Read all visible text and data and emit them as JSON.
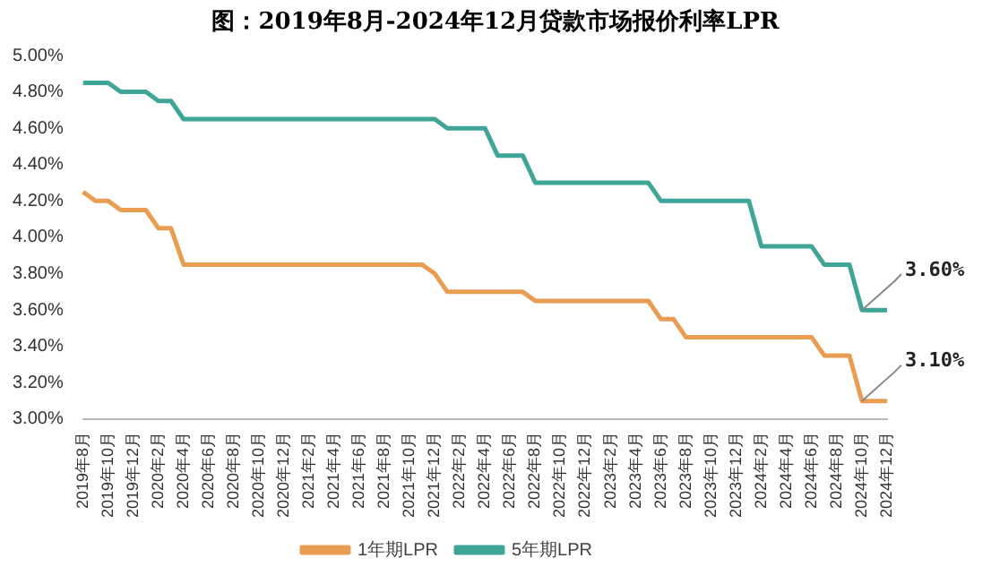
{
  "chart_data": {
    "type": "line",
    "title": "图：2019年8月-2024年12月贷款市场报价利率LPR",
    "categories": [
      "2019年8月",
      null,
      "2019年10月",
      null,
      "2019年12月",
      null,
      "2020年2月",
      null,
      "2020年4月",
      null,
      "2020年6月",
      null,
      "2020年8月",
      null,
      "2020年10月",
      null,
      "2020年12月",
      null,
      "2021年2月",
      null,
      "2021年4月",
      null,
      "2021年6月",
      null,
      "2021年8月",
      null,
      "2021年10月",
      null,
      "2021年12月",
      null,
      "2022年2月",
      null,
      "2022年4月",
      null,
      "2022年6月",
      null,
      "2022年8月",
      null,
      "2022年10月",
      null,
      "2022年12月",
      null,
      "2023年2月",
      null,
      "2023年4月",
      null,
      "2023年6月",
      null,
      "2023年8月",
      null,
      "2023年10月",
      null,
      "2023年12月",
      null,
      "2024年2月",
      null,
      "2024年4月",
      null,
      "2024年6月",
      null,
      "2024年8月",
      null,
      "2024年10月",
      null,
      "2024年12月"
    ],
    "series": [
      {
        "name": "1年期LPR",
        "color": "#e99d52",
        "values": [
          4.25,
          4.2,
          4.2,
          4.15,
          4.15,
          4.15,
          4.05,
          4.05,
          3.85,
          3.85,
          3.85,
          3.85,
          3.85,
          3.85,
          3.85,
          3.85,
          3.85,
          3.85,
          3.85,
          3.85,
          3.85,
          3.85,
          3.85,
          3.85,
          3.85,
          3.85,
          3.85,
          3.85,
          3.8,
          3.7,
          3.7,
          3.7,
          3.7,
          3.7,
          3.7,
          3.7,
          3.65,
          3.65,
          3.65,
          3.65,
          3.65,
          3.65,
          3.65,
          3.65,
          3.65,
          3.65,
          3.55,
          3.55,
          3.45,
          3.45,
          3.45,
          3.45,
          3.45,
          3.45,
          3.45,
          3.45,
          3.45,
          3.45,
          3.45,
          3.35,
          3.35,
          3.35,
          3.1,
          3.1,
          3.1
        ]
      },
      {
        "name": "5年期LPR",
        "color": "#3fa597",
        "values": [
          4.85,
          4.85,
          4.85,
          4.8,
          4.8,
          4.8,
          4.75,
          4.75,
          4.65,
          4.65,
          4.65,
          4.65,
          4.65,
          4.65,
          4.65,
          4.65,
          4.65,
          4.65,
          4.65,
          4.65,
          4.65,
          4.65,
          4.65,
          4.65,
          4.65,
          4.65,
          4.65,
          4.65,
          4.65,
          4.6,
          4.6,
          4.6,
          4.6,
          4.45,
          4.45,
          4.45,
          4.3,
          4.3,
          4.3,
          4.3,
          4.3,
          4.3,
          4.3,
          4.3,
          4.3,
          4.3,
          4.2,
          4.2,
          4.2,
          4.2,
          4.2,
          4.2,
          4.2,
          4.2,
          3.95,
          3.95,
          3.95,
          3.95,
          3.95,
          3.85,
          3.85,
          3.85,
          3.6,
          3.6,
          3.6
        ]
      }
    ],
    "ylim": [
      3,
      5
    ],
    "yticks": [
      {
        "value": 3,
        "label": "3.00%"
      },
      {
        "value": 3.2,
        "label": "3.20%"
      },
      {
        "value": 3.4,
        "label": "3.40%"
      },
      {
        "value": 3.6,
        "label": "3.60%"
      },
      {
        "value": 3.8,
        "label": "3.80%"
      },
      {
        "value": 4,
        "label": "4.00%"
      },
      {
        "value": 4.2,
        "label": "4.20%"
      },
      {
        "value": 4.4,
        "label": "4.40%"
      },
      {
        "value": 4.6,
        "label": "4.60%"
      },
      {
        "value": 4.8,
        "label": "4.80%"
      },
      {
        "value": 5,
        "label": "5.00%"
      }
    ],
    "annotations": [
      {
        "text": "3.60%",
        "x": "2024年10月",
        "y": 3.6
      },
      {
        "text": "3.10%",
        "x": "2024年10月",
        "y": 3.1
      }
    ],
    "legend": "bottom",
    "grid": false,
    "marker": "none",
    "line_style": "solid"
  }
}
